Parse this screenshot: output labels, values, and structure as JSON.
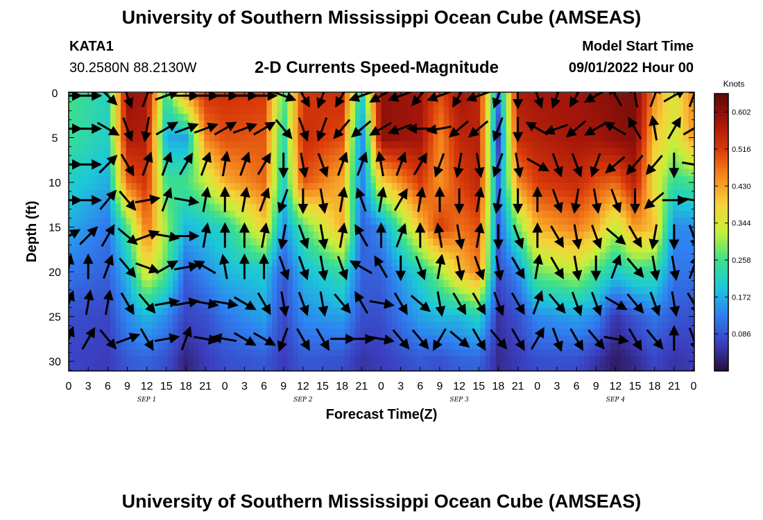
{
  "header": {
    "title_top": "University of Southern Mississippi Ocean Cube (AMSEAS)",
    "title_bottom": "University of Southern Mississippi Ocean Cube (AMSEAS)",
    "station_id": "KATA1",
    "station_coords": "30.2580N  88.2130W",
    "plot_title": "2-D Currents Speed-Magnitude",
    "model_start_label": "Model Start Time",
    "model_start_value": "09/01/2022 Hour 00"
  },
  "chart_data": {
    "type": "heatmap",
    "title": "2-D Currents Speed-Magnitude",
    "xlabel": "Forecast Time(Z)",
    "ylabel": "Depth (ft)",
    "ylim": [
      0,
      31
    ],
    "y_ticks": [
      0,
      5,
      10,
      15,
      20,
      25,
      30
    ],
    "y_reversed": true,
    "x_ticks": [
      "0",
      "3",
      "6",
      "9",
      "12",
      "15",
      "18",
      "21",
      "0",
      "3",
      "6",
      "9",
      "12",
      "15",
      "18",
      "21",
      "0",
      "3",
      "6",
      "9",
      "12",
      "15",
      "18",
      "21",
      "0",
      "3",
      "6",
      "9",
      "12",
      "15",
      "18",
      "21",
      "0"
    ],
    "day_labels": [
      "SEP 1",
      "SEP 2",
      "SEP 3",
      "SEP 4"
    ],
    "colorbar": {
      "unit": "Knots",
      "tick_labels": [
        "0.602",
        "0.516",
        "0.430",
        "0.344",
        "0.258",
        "0.172",
        "0.086"
      ],
      "range": [
        0.0,
        0.645
      ],
      "colors": [
        "#2a0b3b",
        "#3b3fc0",
        "#2f7ff0",
        "#1cc7d9",
        "#3de08a",
        "#c6f03a",
        "#f5d23a",
        "#f58a1f",
        "#d93a0a",
        "#a3150a",
        "#5c0a08"
      ]
    },
    "speed_field": {
      "depths_ft": [
        0,
        5,
        10,
        15,
        20,
        25,
        30
      ],
      "times_hr": [
        0,
        6,
        9,
        12,
        15,
        18,
        21,
        24,
        30,
        33,
        36,
        42,
        45,
        48,
        54,
        57,
        60,
        63,
        66,
        69,
        72,
        78,
        81,
        84,
        87,
        90,
        93,
        96
      ],
      "values": [
        [
          0.26,
          0.22,
          0.59,
          0.58,
          0.25,
          0.44,
          0.53,
          0.53,
          0.52,
          0.26,
          0.52,
          0.54,
          0.2,
          0.6,
          0.58,
          0.5,
          0.58,
          0.55,
          0.14,
          0.57,
          0.58,
          0.58,
          0.6,
          0.61,
          0.62,
          0.45,
          0.35,
          0.46
        ],
        [
          0.25,
          0.21,
          0.57,
          0.56,
          0.17,
          0.16,
          0.46,
          0.5,
          0.49,
          0.22,
          0.54,
          0.5,
          0.12,
          0.6,
          0.58,
          0.45,
          0.55,
          0.56,
          0.06,
          0.54,
          0.56,
          0.58,
          0.58,
          0.6,
          0.61,
          0.4,
          0.33,
          0.44
        ],
        [
          0.21,
          0.17,
          0.48,
          0.53,
          0.25,
          0.26,
          0.32,
          0.42,
          0.48,
          0.2,
          0.5,
          0.42,
          0.12,
          0.38,
          0.52,
          0.44,
          0.51,
          0.55,
          0.12,
          0.45,
          0.52,
          0.54,
          0.5,
          0.48,
          0.56,
          0.36,
          0.24,
          0.26
        ],
        [
          0.17,
          0.12,
          0.26,
          0.48,
          0.3,
          0.18,
          0.2,
          0.22,
          0.38,
          0.14,
          0.26,
          0.42,
          0.1,
          0.14,
          0.4,
          0.52,
          0.47,
          0.5,
          0.1,
          0.28,
          0.42,
          0.46,
          0.42,
          0.32,
          0.44,
          0.4,
          0.14,
          0.14
        ],
        [
          0.12,
          0.1,
          0.18,
          0.36,
          0.26,
          0.1,
          0.14,
          0.18,
          0.2,
          0.09,
          0.18,
          0.24,
          0.1,
          0.1,
          0.22,
          0.3,
          0.4,
          0.46,
          0.08,
          0.14,
          0.28,
          0.32,
          0.26,
          0.2,
          0.24,
          0.24,
          0.12,
          0.12
        ],
        [
          0.08,
          0.07,
          0.14,
          0.18,
          0.14,
          0.07,
          0.08,
          0.12,
          0.16,
          0.07,
          0.14,
          0.16,
          0.08,
          0.08,
          0.16,
          0.18,
          0.18,
          0.22,
          0.05,
          0.08,
          0.14,
          0.16,
          0.14,
          0.05,
          0.09,
          0.12,
          0.09,
          0.08
        ],
        [
          0.07,
          0.06,
          0.09,
          0.1,
          0.08,
          0.03,
          0.06,
          0.08,
          0.09,
          0.06,
          0.09,
          0.08,
          0.05,
          0.06,
          0.09,
          0.08,
          0.1,
          0.1,
          0.04,
          0.06,
          0.08,
          0.08,
          0.05,
          0.02,
          0.04,
          0.07,
          0.05,
          0.06
        ]
      ]
    },
    "vectors": {
      "depths_ft": [
        0,
        4,
        8,
        12,
        16,
        19.5,
        23.5,
        27.5
      ],
      "times_hr": [
        0,
        3,
        6,
        9,
        12,
        15,
        18,
        21,
        24,
        27,
        30,
        33,
        36,
        39,
        42,
        45,
        48,
        51,
        54,
        57,
        60,
        63,
        66,
        69,
        72,
        75,
        78,
        81,
        84,
        87,
        90,
        93,
        96
      ],
      "direction_deg": [
        [
          90,
          90,
          135,
          160,
          20,
          70,
          90,
          90,
          90,
          90,
          90,
          110,
          150,
          200,
          210,
          250,
          240,
          250,
          220,
          250,
          210,
          250,
          200,
          180,
          160,
          200,
          210,
          240,
          330,
          350,
          20,
          60,
          20
        ],
        [
          90,
          90,
          120,
          160,
          190,
          60,
          70,
          70,
          60,
          70,
          60,
          140,
          160,
          200,
          220,
          230,
          240,
          250,
          270,
          260,
          230,
          230,
          200,
          180,
          300,
          250,
          230,
          240,
          300,
          330,
          350,
          30,
          60
        ],
        [
          90,
          90,
          45,
          150,
          20,
          20,
          30,
          20,
          10,
          20,
          30,
          180,
          170,
          160,
          20,
          20,
          350,
          20,
          30,
          200,
          190,
          170,
          200,
          170,
          120,
          160,
          160,
          200,
          230,
          220,
          220,
          180,
          100
        ],
        [
          90,
          90,
          40,
          140,
          80,
          20,
          100,
          10,
          0,
          10,
          20,
          200,
          180,
          170,
          10,
          340,
          10,
          30,
          10,
          0,
          180,
          10,
          190,
          180,
          0,
          160,
          190,
          170,
          160,
          180,
          230,
          90,
          100
        ],
        [
          60,
          45,
          30,
          130,
          70,
          100,
          90,
          10,
          0,
          0,
          10,
          190,
          160,
          170,
          10,
          330,
          0,
          20,
          0,
          350,
          170,
          10,
          180,
          160,
          0,
          150,
          170,
          160,
          130,
          150,
          190,
          180,
          160
        ],
        [
          10,
          0,
          20,
          140,
          110,
          60,
          80,
          300,
          350,
          0,
          0,
          160,
          160,
          170,
          160,
          300,
          330,
          180,
          160,
          10,
          170,
          160,
          170,
          150,
          10,
          150,
          170,
          180,
          20,
          140,
          170,
          170,
          20
        ],
        [
          20,
          10,
          10,
          150,
          140,
          80,
          80,
          100,
          100,
          120,
          150,
          170,
          160,
          170,
          140,
          330,
          100,
          150,
          130,
          170,
          150,
          150,
          160,
          150,
          20,
          140,
          160,
          160,
          120,
          140,
          160,
          170,
          150
        ],
        [
          20,
          30,
          140,
          70,
          150,
          80,
          20,
          100,
          280,
          120,
          120,
          200,
          150,
          150,
          90,
          90,
          100,
          140,
          140,
          210,
          130,
          150,
          140,
          150,
          30,
          160,
          150,
          140,
          100,
          150,
          140,
          0,
          160
        ]
      ]
    }
  }
}
